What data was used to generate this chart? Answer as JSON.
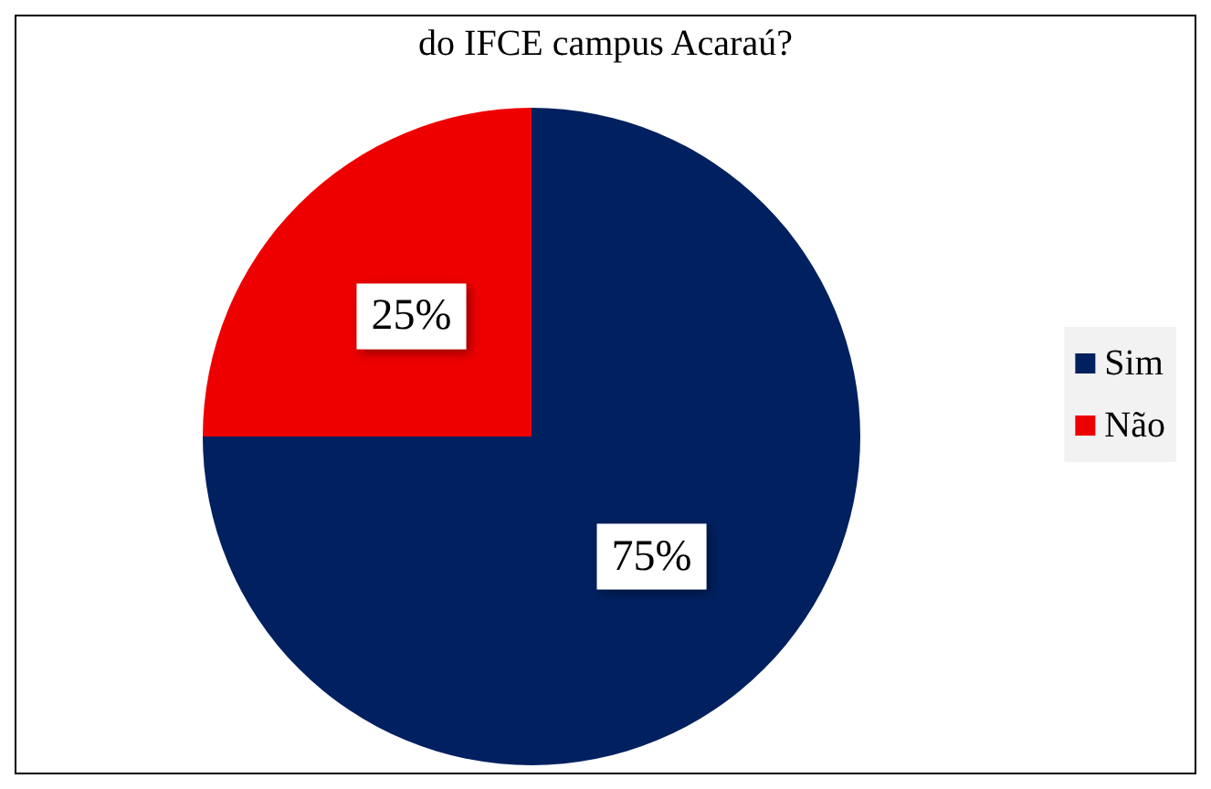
{
  "chart_data": {
    "type": "pie",
    "title": "do IFCE campus Acaraú?",
    "categories": [
      "Sim",
      "Não"
    ],
    "values": [
      75,
      25
    ],
    "value_labels": [
      "75%",
      "25%"
    ],
    "colors": [
      "#002060",
      "#ee0000"
    ],
    "legend": "right"
  }
}
